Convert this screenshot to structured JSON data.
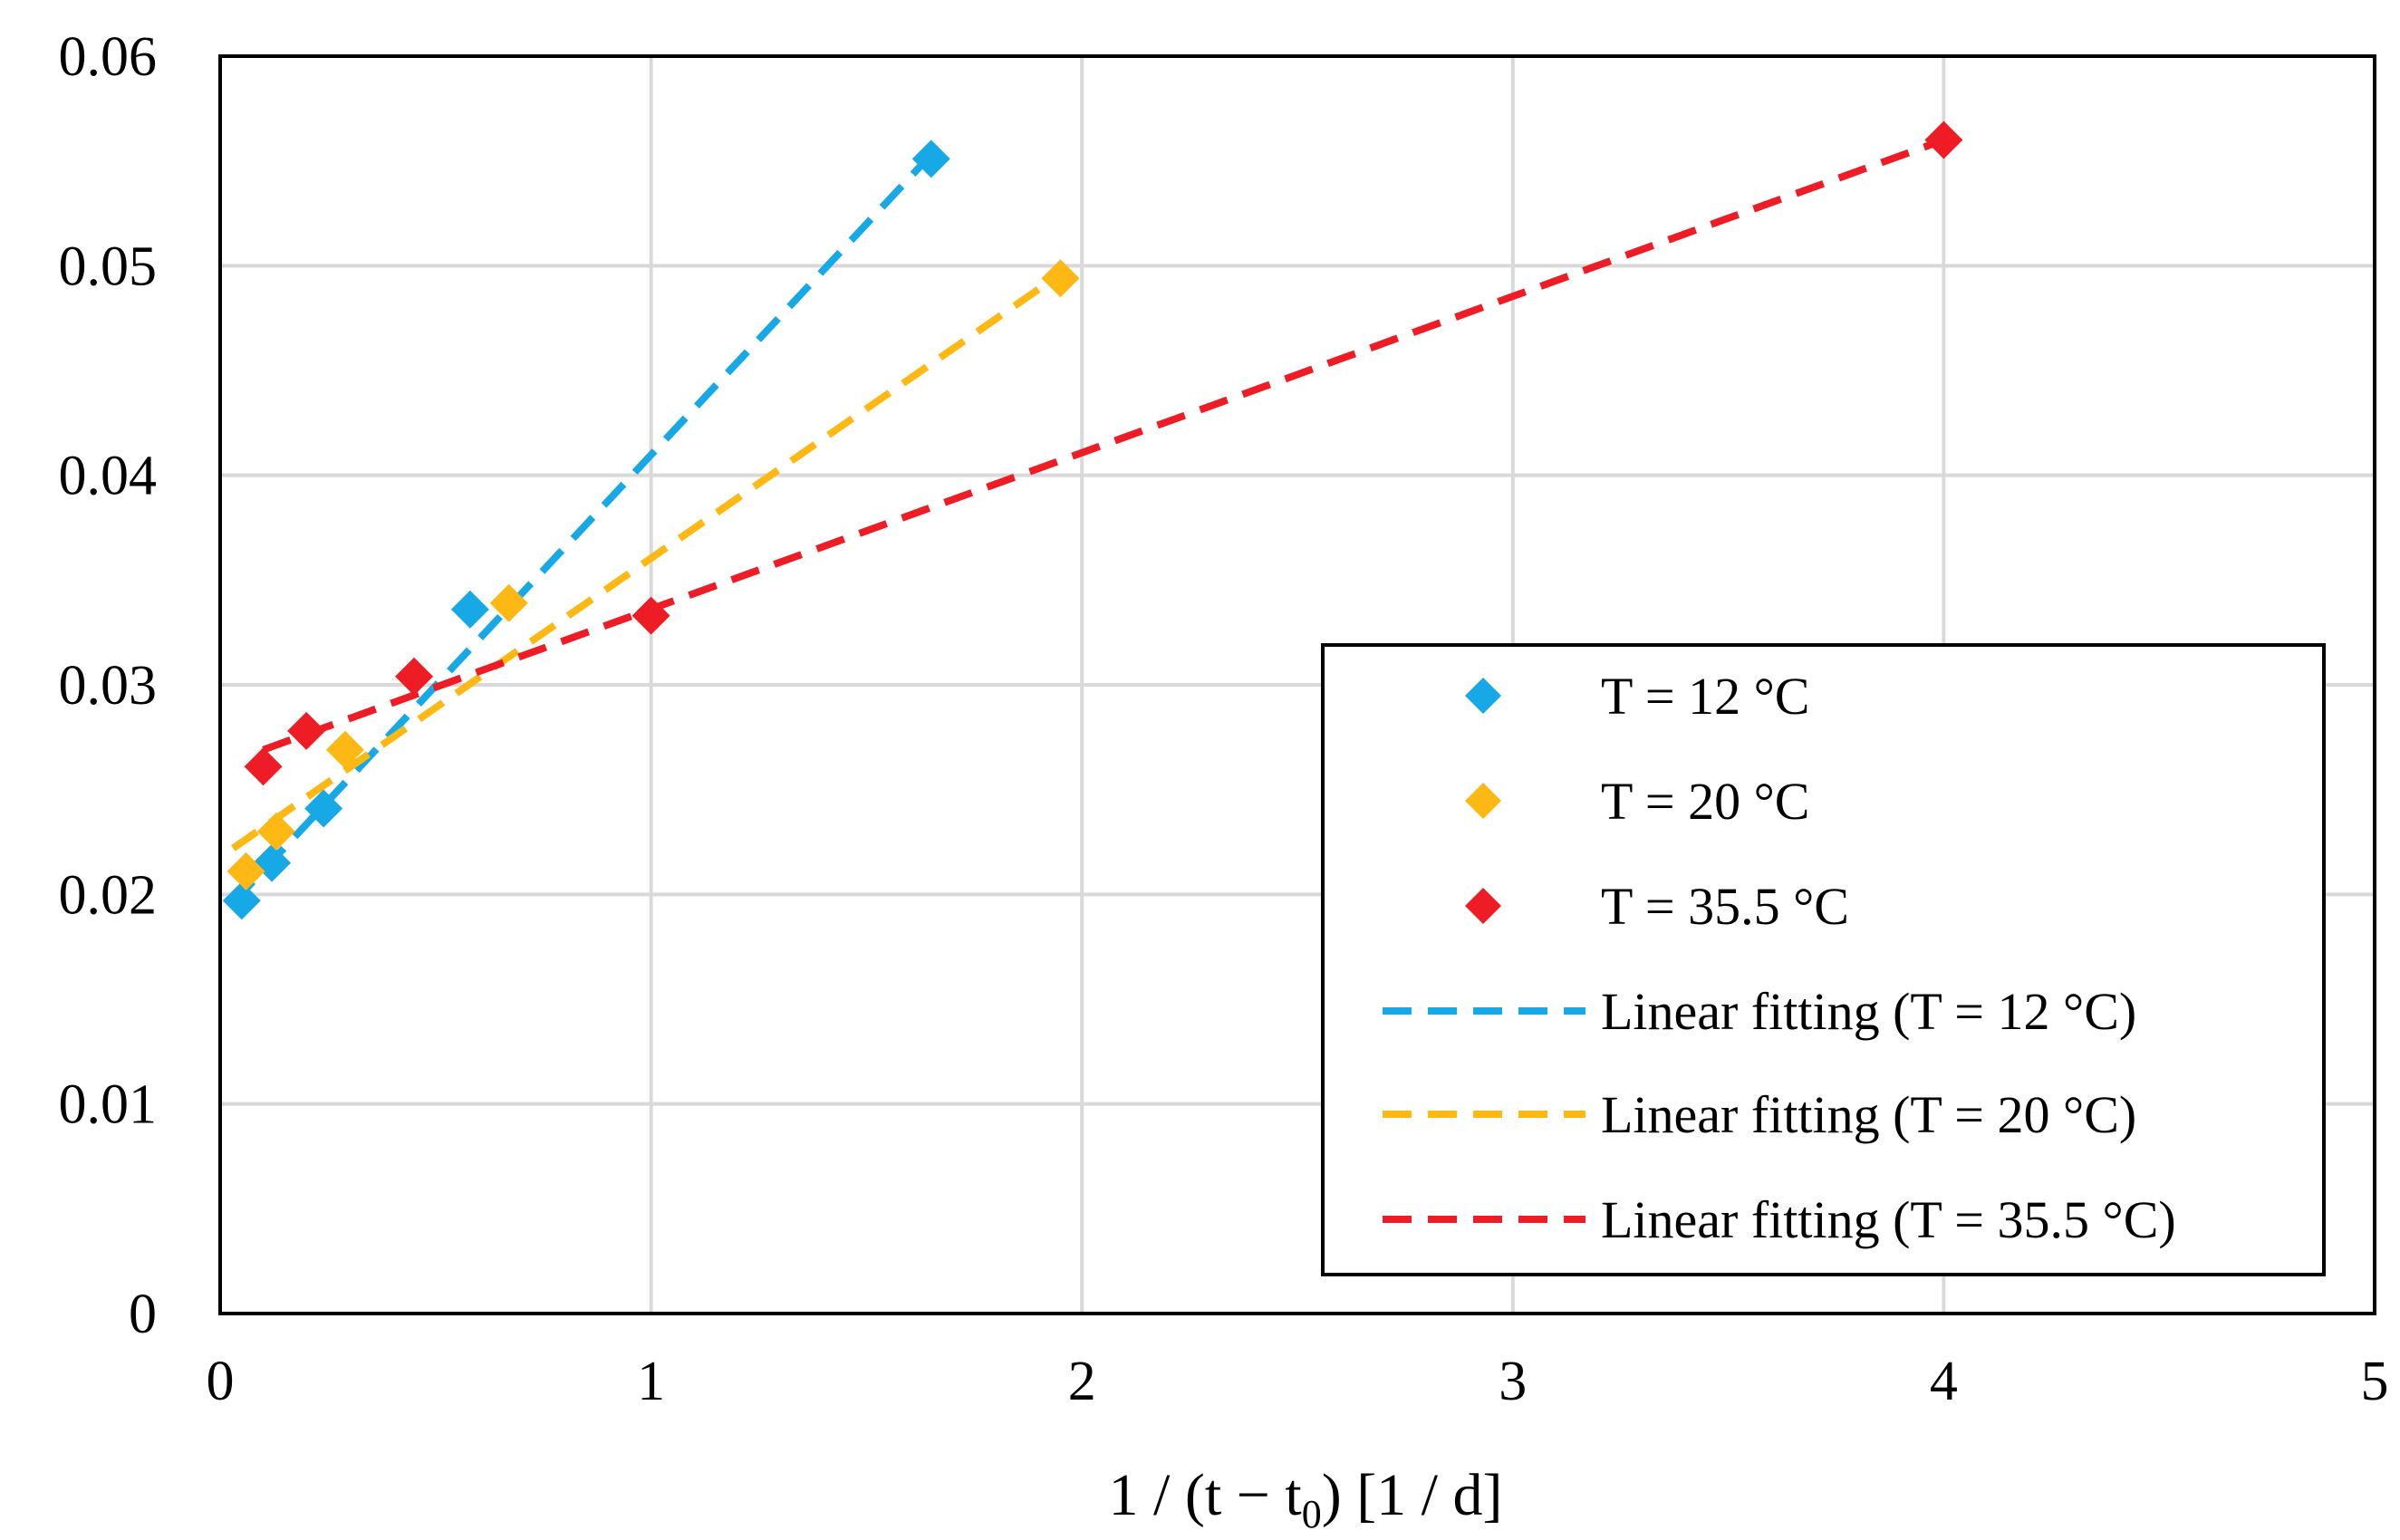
{
  "chart_data": {
    "type": "scatter",
    "title": "",
    "xlabel": "1 /  (t − t0) [1 / d]",
    "xlabel_parts": {
      "prefix": "1 /  (t − t",
      "subscript": "0",
      "suffix": ") [1 / d]"
    },
    "ylabel": "",
    "xlim": [
      0,
      5
    ],
    "ylim": [
      0,
      0.06
    ],
    "xticks": [
      0,
      1,
      2,
      3,
      4,
      5
    ],
    "xtick_labels": [
      "0",
      "1",
      "2",
      "3",
      "4",
      "5"
    ],
    "yticks": [
      0,
      0.01,
      0.02,
      0.03,
      0.04,
      0.05,
      0.06
    ],
    "ytick_labels": [
      "0",
      "0.01",
      "0.02",
      "0.03",
      "0.04",
      "0.05",
      "0.06"
    ],
    "grid": true,
    "legend_position": "center-right",
    "series": [
      {
        "name": "T = 12 °C",
        "color": "#17A9E6",
        "marker": "diamond",
        "x": [
          0.05,
          0.12,
          0.24,
          0.58,
          1.65
        ],
        "y": [
          0.0197,
          0.0215,
          0.0241,
          0.0336,
          0.0551
        ]
      },
      {
        "name": "T = 20 °C",
        "color": "#FDB813",
        "marker": "diamond",
        "x": [
          0.06,
          0.13,
          0.29,
          0.67,
          1.95
        ],
        "y": [
          0.0211,
          0.023,
          0.0269,
          0.0339,
          0.0494
        ]
      },
      {
        "name": "T = 35.5 °C",
        "color": "#EE1C24",
        "marker": "diamond",
        "x": [
          0.1,
          0.2,
          0.45,
          1.0,
          4.0
        ],
        "y": [
          0.0261,
          0.0278,
          0.0304,
          0.0333,
          0.056
        ]
      }
    ],
    "fits": [
      {
        "name": "Linear fitting (T = 12 °C)",
        "color": "#17A9E6",
        "style": "dashed",
        "x": [
          0.03,
          1.65
        ],
        "y": [
          0.0196,
          0.0553
        ]
      },
      {
        "name": "Linear fitting (T = 20 °C)",
        "color": "#FDB813",
        "style": "dashed",
        "x": [
          0.03,
          1.95
        ],
        "y": [
          0.0222,
          0.0496
        ]
      },
      {
        "name": "Linear fitting (T = 35.5 °C)",
        "color": "#EE1C24",
        "style": "dashed",
        "x": [
          0.1,
          4.0
        ],
        "y": [
          0.0269,
          0.056
        ]
      }
    ],
    "colors": {
      "grid": "#D9D9D9",
      "axis": "#000000",
      "background": "#FFFFFF"
    }
  }
}
